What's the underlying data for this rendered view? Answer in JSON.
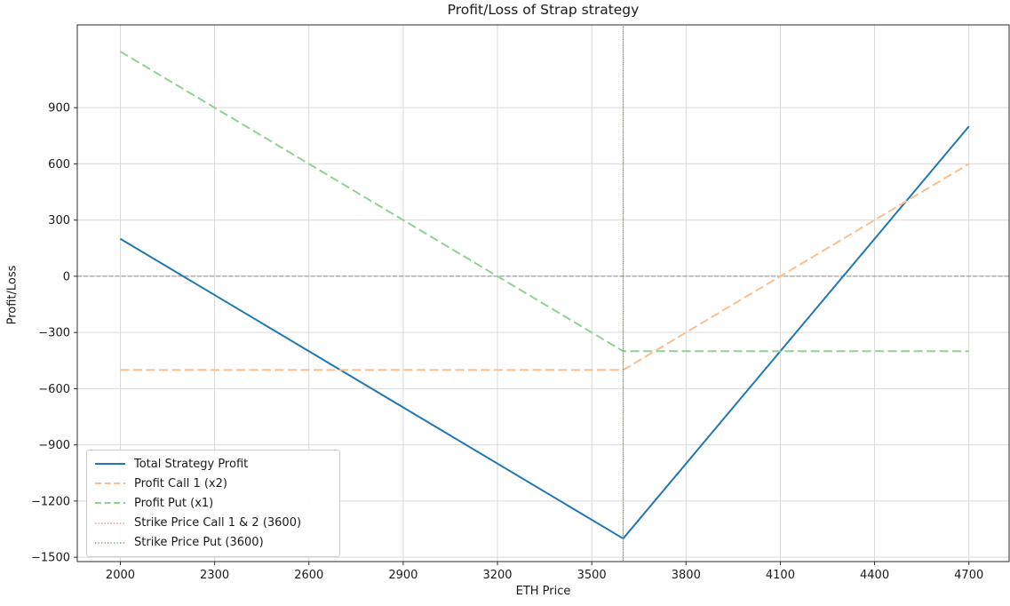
{
  "chart_data": {
    "type": "line",
    "title": "Profit/Loss of Strap strategy",
    "xlabel": "ETH Price",
    "ylabel": "Profit/Loss",
    "xlim": [
      1863,
      4828
    ],
    "ylim": [
      -1523,
      1342
    ],
    "x_ticks": [
      2000,
      2300,
      2600,
      2900,
      3200,
      3500,
      3800,
      4100,
      4400,
      4700
    ],
    "y_ticks": [
      -1500,
      -1200,
      -900,
      -600,
      -300,
      0,
      300,
      600,
      900
    ],
    "grid": true,
    "grid_color": "#d9d9d9",
    "spine_color": "#2b2b2b",
    "zero_line": {
      "y": 0,
      "color": "#8c8c8c",
      "style": "dashed"
    },
    "series": [
      {
        "name": "Total Strategy Profit",
        "kind": "line",
        "style": "solid",
        "color": "#1f77b4",
        "width": 2,
        "points": [
          [
            2000,
            200
          ],
          [
            3600,
            -1400
          ],
          [
            4700,
            800
          ]
        ]
      },
      {
        "name": "Profit Call 1 (x2)",
        "kind": "line",
        "style": "dashed",
        "color": "#fcbe8a",
        "width": 2,
        "points": [
          [
            2000,
            -500
          ],
          [
            3600,
            -500
          ],
          [
            4700,
            600
          ]
        ]
      },
      {
        "name": "Profit Put (x1)",
        "kind": "line",
        "style": "dashed",
        "color": "#90d295",
        "width": 2,
        "points": [
          [
            2000,
            1200
          ],
          [
            3600,
            -400
          ],
          [
            4700,
            -400
          ]
        ]
      },
      {
        "name": "Strike Price Call 1 & 2 (3600)",
        "kind": "vline",
        "style": "dotted",
        "color": "#f07070",
        "width": 1.2,
        "x": 3600
      },
      {
        "name": "Strike Price Put (3600)",
        "kind": "vline",
        "style": "dotted",
        "color": "#4fa64f",
        "width": 1.2,
        "x": 3600
      }
    ],
    "legend": {
      "position": "lower-left"
    }
  }
}
